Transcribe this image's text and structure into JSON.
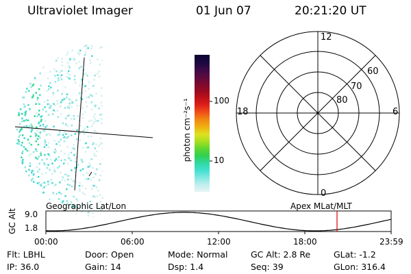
{
  "header": {
    "instrument": "Ultraviolet Imager",
    "date": "01 Jun 07",
    "time": "20:21:20 UT"
  },
  "colorbar": {
    "label": "photon cm⁻²s⁻¹",
    "ticks": [
      "100",
      "10"
    ],
    "colors": [
      "#0a0530",
      "#1a0840",
      "#3a0a48",
      "#5a0a40",
      "#7a0a30",
      "#990a20",
      "#c0101a",
      "#e0201a",
      "#f05018",
      "#f08a10",
      "#f0b010",
      "#e0e020",
      "#a8e020",
      "#60d830",
      "#30d050",
      "#30d8a0",
      "#40e0d0",
      "#80e8e0",
      "#c0eeee",
      "#e6f4f4"
    ],
    "data_min_color": "#e6f4f4"
  },
  "left_panel": {
    "subtitle": "Geographic Lat/Lon"
  },
  "polar": {
    "subtitle": "Apex MLat/MLT",
    "mlt_labels": [
      "12",
      "18",
      "6",
      "0"
    ],
    "mlat_labels": [
      "60",
      "70",
      "80"
    ]
  },
  "timeline": {
    "ylabel": "GC Alt",
    "yticks": [
      "9.0",
      "1.8"
    ],
    "xticks": [
      "00:00",
      "06:00",
      "12:00",
      "18:00",
      "23:59"
    ],
    "marker_color": "#e00000"
  },
  "info": {
    "row1": [
      {
        "label": "Flt:",
        "value": "LBHL"
      },
      {
        "label": "Door:",
        "value": "Open"
      },
      {
        "label": "Mode:",
        "value": "Normal"
      },
      {
        "label": "GC Alt:",
        "value": "2.8 Re"
      },
      {
        "label": "GLat:",
        "value": "-1.2"
      }
    ],
    "row2": [
      {
        "label": "IP:",
        "value": "36.0"
      },
      {
        "label": "Gain:",
        "value": "14"
      },
      {
        "label": "Dsp:",
        "value": "1.4"
      },
      {
        "label": "Seq:",
        "value": "39"
      },
      {
        "label": "GLon:",
        "value": "316.4"
      }
    ]
  }
}
